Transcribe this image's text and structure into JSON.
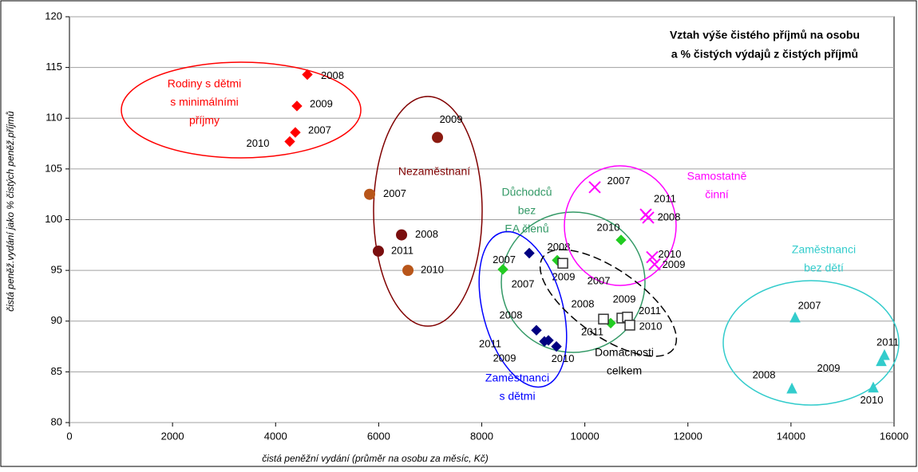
{
  "chart_data": {
    "type": "scatter",
    "title": [
      "Vztah výše čistého příjmů na osobu",
      "a % čistých výdajů z čistých příjmů"
    ],
    "x_label": "čistá peněžní vydání (průměr na osobu za měsíc, Kč)",
    "y_label": "čistá peněž.vydání jako % čistých peněž.příjmů",
    "xlim": [
      0,
      16000
    ],
    "xticks": [
      0,
      2000,
      4000,
      6000,
      8000,
      10000,
      12000,
      14000,
      16000
    ],
    "ylim": [
      80,
      120
    ],
    "yticks": [
      80,
      85,
      90,
      95,
      100,
      105,
      110,
      115,
      120
    ],
    "grid": true,
    "series": [
      {
        "name": [
          "Rodiny s dětmi",
          "s minimálními",
          "příjmy"
        ],
        "color": "#ff0000",
        "marker": "diamond",
        "marker_color": "#ff0000",
        "labels": [
          "2008",
          "2009",
          "2007",
          "2010"
        ],
        "x": [
          4616,
          4414,
          4383,
          4275
        ],
        "values": [
          114.3,
          111.2,
          108.6,
          107.7
        ]
      },
      {
        "name": [
          "Nezaměstnaní"
        ],
        "color": "#800000",
        "marker": "circle",
        "marker_color": "#800000",
        "point_colors": [
          "#8b1a10",
          "#b8561a",
          "#7a0e0e",
          "#7a0e0e",
          "#b8561a"
        ],
        "labels": [
          "2009",
          "2007",
          "2008",
          "2011",
          "2010"
        ],
        "x": [
          7141,
          5824,
          6444,
          5994,
          6568
        ],
        "values": [
          108.1,
          102.5,
          98.5,
          96.9,
          95.0
        ]
      },
      {
        "name": [
          "Důchodců",
          "bez",
          "EA členů"
        ],
        "color": "#339966",
        "marker": "diamond",
        "marker_color": "#22cc22",
        "labels": [
          "2007",
          "2008",
          "2009",
          "2010",
          "2011"
        ],
        "x": [
          8411,
          9464,
          9541,
          10703,
          10502
        ],
        "values": [
          95.1,
          96.0,
          95.7,
          98.0,
          89.8
        ]
      },
      {
        "name": [
          "Zaměstnanci",
          "s dětmi"
        ],
        "color": "#0000ff",
        "marker": "diamond",
        "marker_color": "#000080",
        "labels": [
          "2007",
          "2008",
          "2011",
          "2009",
          "2010"
        ],
        "x": [
          8922,
          9061,
          9216,
          9294,
          9449
        ],
        "values": [
          96.7,
          89.1,
          88.0,
          88.1,
          87.5
        ]
      },
      {
        "name": [
          "Samostatně",
          "činní"
        ],
        "color": "#ff00ff",
        "marker": "x",
        "marker_color": "#ff00ff",
        "labels": [
          "2007",
          "2011",
          "2008",
          "2010",
          "2009"
        ],
        "x": [
          10192,
          11183,
          11230,
          11307,
          11354
        ],
        "values": [
          103.2,
          100.5,
          100.2,
          96.3,
          95.6
        ]
      },
      {
        "name": [
          "Domácnosti",
          "celkem"
        ],
        "color": "#000000",
        "marker": "square",
        "marker_color": "#333333",
        "labels": [
          "2007",
          "2008",
          "2009",
          "2011",
          "2010"
        ],
        "x": [
          9573,
          10362,
          10719,
          10827,
          10874
        ],
        "values": [
          95.7,
          90.2,
          90.3,
          90.4,
          89.6
        ]
      },
      {
        "name": [
          "Zaměstnanci",
          "bez dětí"
        ],
        "color": "#33cccc",
        "marker": "triangle",
        "marker_color": "#33cccc",
        "labels": [
          "2007",
          "2008",
          "2011",
          "2009",
          "2010"
        ],
        "x": [
          14080,
          14018,
          15814,
          15752,
          15597
        ],
        "values": [
          90.3,
          83.3,
          86.6,
          86.0,
          83.4
        ]
      }
    ]
  }
}
